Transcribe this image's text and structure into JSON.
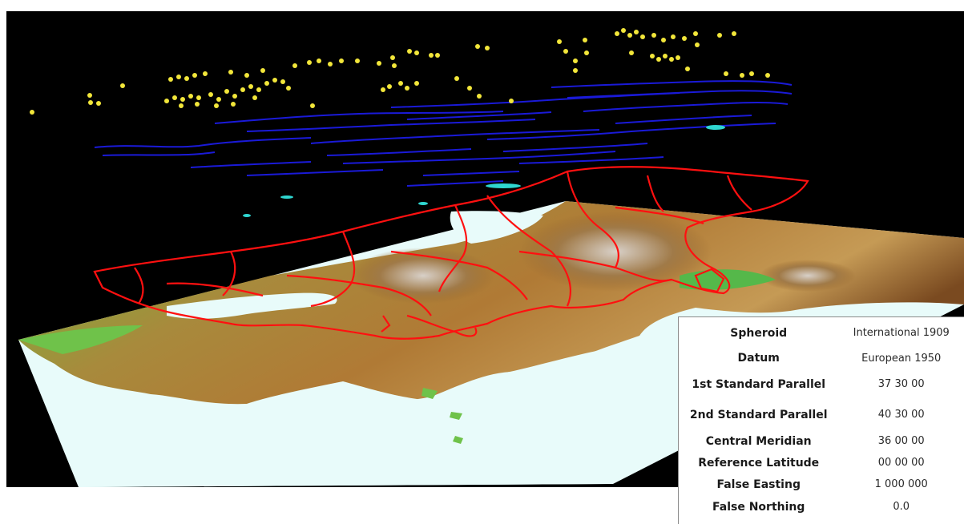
{
  "colors": {
    "background": "#000000",
    "points_layer": "#f2e63a",
    "lines_layer": "#1a1ad8",
    "boundaries_layer": "#ff1010",
    "water_highlight": "#2fd6d0",
    "sea": "#e8fbfa"
  },
  "layers": [
    {
      "name": "points-layer",
      "icon": "yellow-dots"
    },
    {
      "name": "lines-layer",
      "icon": "blue-lines"
    },
    {
      "name": "boundaries-layer",
      "icon": "red-polygons"
    },
    {
      "name": "terrain-layer",
      "icon": "elevation-raster"
    }
  ],
  "projection_table": {
    "rows": [
      {
        "label": "Spheroid",
        "value": "International 1909"
      },
      {
        "label": "Datum",
        "value": "European 1950"
      },
      {
        "label": "1st Standard Parallel",
        "value": "37 30 00"
      },
      {
        "label": "2nd Standard Parallel",
        "value": "40 30 00"
      },
      {
        "label": "Central Meridian",
        "value": "36 00 00"
      },
      {
        "label": "Reference Latitude",
        "value": "00 00 00"
      },
      {
        "label": "False Easting",
        "value": "1 000 000"
      },
      {
        "label": "False Northing",
        "value": "0.0"
      }
    ]
  }
}
